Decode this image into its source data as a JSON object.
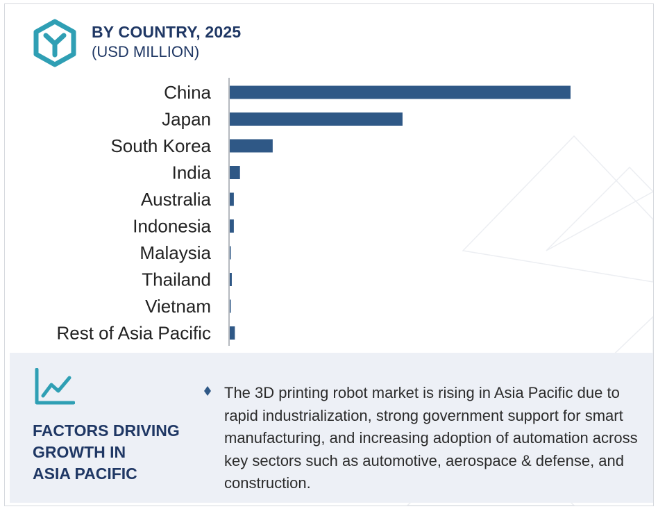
{
  "header": {
    "title": "BY COUNTRY, 2025",
    "subtitle": "(USD MILLION)",
    "icon": "hexagon-y-icon"
  },
  "colors": {
    "bar": "#2f5886",
    "title": "#1f3764",
    "accent_icon": "#2f9fb4",
    "panel_bg": "#edf0f6"
  },
  "chart_data": {
    "type": "bar",
    "orientation": "horizontal",
    "title": "BY COUNTRY, 2025",
    "subtitle": "(USD MILLION)",
    "categories": [
      "China",
      "Japan",
      "South Korea",
      "India",
      "Australia",
      "Indonesia",
      "Malaysia",
      "Thailand",
      "Vietnam",
      "Rest of Asia Pacific"
    ],
    "values": [
      100,
      50.7,
      12.6,
      3.0,
      1.2,
      1.2,
      0.3,
      0.6,
      0.3,
      1.5
    ],
    "value_scale": "relative, China = 100 (no axis values printed)",
    "xlim": [
      0,
      100
    ],
    "grid": false,
    "legend": "none"
  },
  "factors": {
    "icon": "trend-chart-icon",
    "title_lines": [
      "FACTORS DRIVING",
      "GROWTH IN",
      "ASIA PACIFIC"
    ],
    "bullet": "♦",
    "text": "The 3D printing robot market is rising in Asia Pacific due to rapid industrialization, strong government support for smart manufacturing, and increasing adoption of automation across key sectors such as automotive, aerospace & defense, and construction."
  }
}
